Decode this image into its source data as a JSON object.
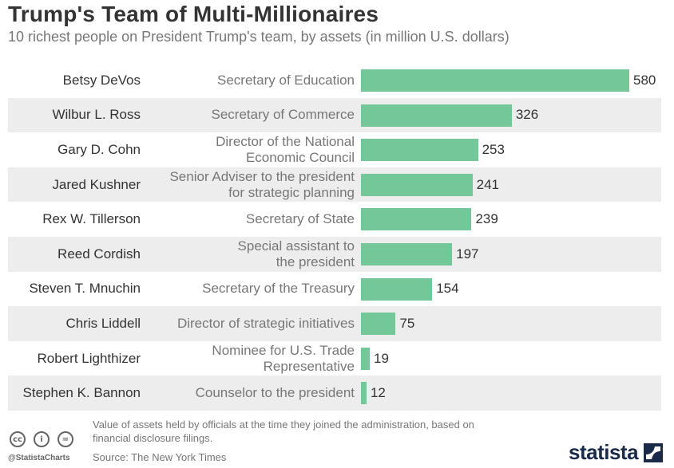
{
  "chart_data": {
    "type": "bar",
    "title": "Trump's Team of Multi-Millionaires",
    "subtitle": "10 richest people on President Trump's team, by assets (in million U.S. dollars)",
    "categories": [
      "Betsy DeVos",
      "Wilbur L. Ross",
      "Gary D. Cohn",
      "Jared Kushner",
      "Rex W. Tillerson",
      "Reed Cordish",
      "Steven T. Mnuchin",
      "Chris Liddell",
      "Robert Lighthizer",
      "Stephen K. Bannon"
    ],
    "roles": [
      "Secretary of Education",
      "Secretary of Commerce",
      "Director of the National\nEconomic Council",
      "Senior Adviser to the president\nfor strategic planning",
      "Secretary of State",
      "Special assistant to\nthe president",
      "Secretary of the Treasury",
      "Director of strategic initiatives",
      "Nominee for U.S. Trade\nRepresentative",
      "Counselor to the president"
    ],
    "values": [
      580,
      326,
      253,
      241,
      239,
      197,
      154,
      75,
      19,
      12
    ],
    "xlim": [
      0,
      580
    ],
    "bar_color": "#74c799",
    "orientation": "horizontal"
  },
  "footer": {
    "note": "Value of assets held by officials at the time they joined the administration, based on financial disclosure filings.",
    "source": "Source: The New York Times",
    "handle": "@StatistaCharts",
    "logo": "statista"
  }
}
